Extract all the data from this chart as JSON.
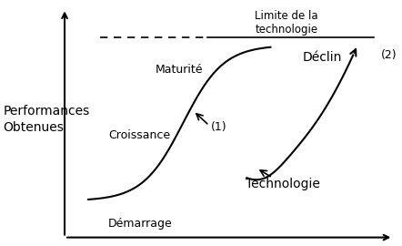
{
  "background_color": "#ffffff",
  "ylabel_line1": "Performances",
  "ylabel_line2": "Obtenues",
  "ylabel_fontsize": 10,
  "label_demarrage": "Démarrage",
  "label_croissance": "Croissance",
  "label_maturite": "Maturité",
  "label_declin": "Déclin",
  "label_technologie": "Technologie",
  "label_limite_line1": "Limite de la",
  "label_limite_line2": "technologie",
  "label_1": "(1)",
  "label_2": "(2)",
  "curve_color": "#000000",
  "arrow_color": "#000000",
  "axis_color": "#000000",
  "text_color": "#000000"
}
